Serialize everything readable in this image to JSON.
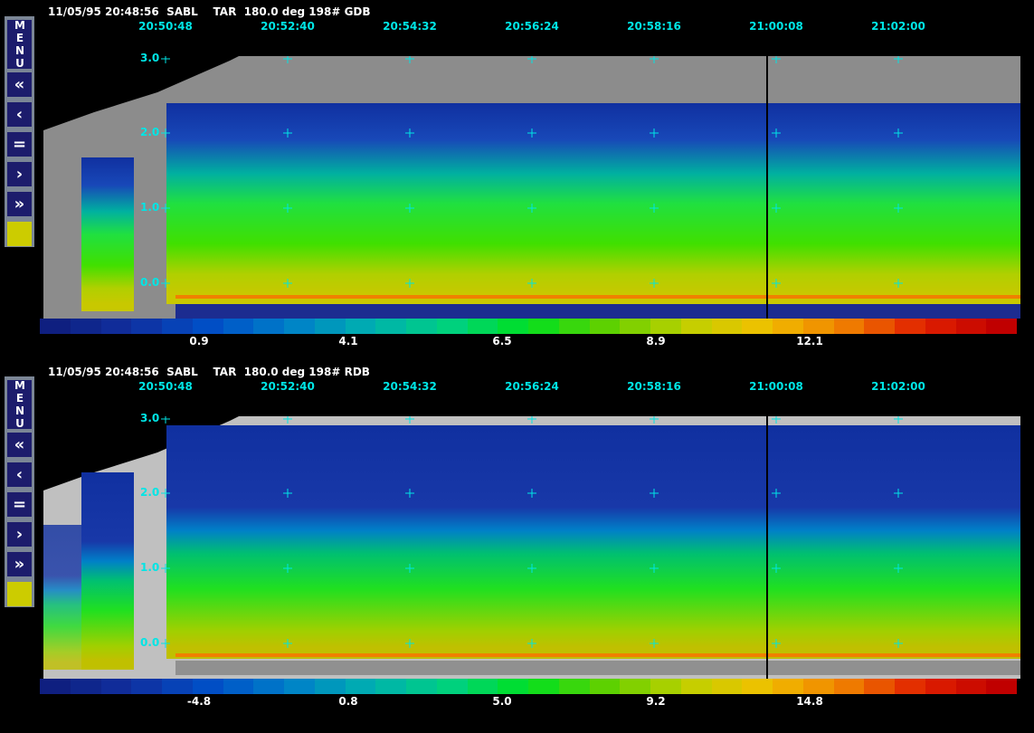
{
  "menu": {
    "label": "MENU",
    "buttons": [
      {
        "name": "fast-rewind",
        "glyph": "«"
      },
      {
        "name": "step-back",
        "glyph": "‹"
      },
      {
        "name": "pause",
        "glyph": "="
      },
      {
        "name": "step-forward",
        "glyph": "›"
      },
      {
        "name": "fast-forward",
        "glyph": "»"
      }
    ],
    "color_swatch": "#cccc00"
  },
  "panels": [
    {
      "header": "11/05/95 20:48:56  SABL    TAR  180.0 deg 198# GDB",
      "times": [
        "20:50:48",
        "20:52:40",
        "20:54:32",
        "20:56:24",
        "20:58:16",
        "21:00:08",
        "21:02:00"
      ],
      "y_ticks": [
        "3.0",
        "2.0",
        "1.0",
        "0.0"
      ],
      "colorbar_labels": [
        "0.9",
        "4.1",
        "6.5",
        "8.9",
        "12.1"
      ],
      "mask_color": "#8c8c8c"
    },
    {
      "header": "11/05/95 20:48:56  SABL    TAR  180.0 deg 198# RDB",
      "times": [
        "20:50:48",
        "20:52:40",
        "20:54:32",
        "20:56:24",
        "20:58:16",
        "21:00:08",
        "21:02:00"
      ],
      "y_ticks": [
        "3.0",
        "2.0",
        "1.0",
        "0.0"
      ],
      "colorbar_labels": [
        "-4.8",
        "0.8",
        "5.0",
        "9.2",
        "14.8"
      ],
      "mask_color": "#c0c0c0"
    }
  ],
  "colormap": [
    "#0f1f80",
    "#1030a0",
    "#0050c8",
    "#0080c8",
    "#00b0b0",
    "#00d080",
    "#00e020",
    "#60d000",
    "#c0d000",
    "#f0c000",
    "#f08000",
    "#e02000",
    "#c00000"
  ]
}
